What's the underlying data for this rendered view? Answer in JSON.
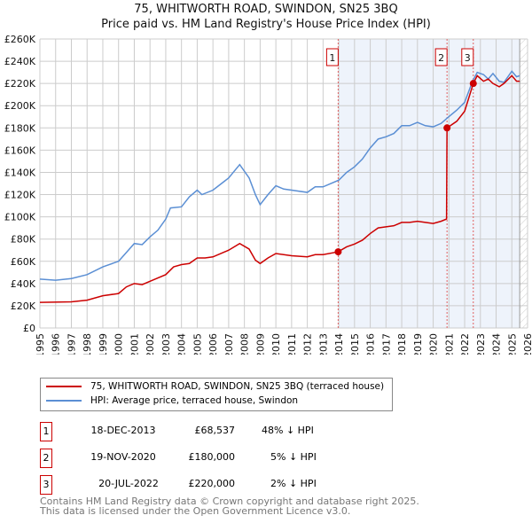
{
  "chart_data": {
    "type": "line",
    "title": "75, WHITWORTH ROAD, SWINDON, SN25 3BQ",
    "subtitle": "Price paid vs. HM Land Registry's House Price Index (HPI)",
    "xlim": [
      1995,
      2026
    ],
    "ylim": [
      0,
      260000
    ],
    "x_ticks": [
      "1995",
      "1996",
      "1997",
      "1998",
      "1999",
      "2000",
      "2001",
      "2002",
      "2003",
      "2004",
      "2005",
      "2006",
      "2007",
      "2008",
      "2009",
      "2010",
      "2011",
      "2012",
      "2013",
      "2014",
      "2015",
      "2016",
      "2017",
      "2018",
      "2019",
      "2020",
      "2021",
      "2022",
      "2023",
      "2024",
      "2025",
      "2026"
    ],
    "y_ticks": [
      "£0",
      "£20K",
      "£40K",
      "£60K",
      "£80K",
      "£100K",
      "£120K",
      "£140K",
      "£160K",
      "£180K",
      "£200K",
      "£220K",
      "£240K",
      "£260K"
    ],
    "grid": true,
    "colors": {
      "property": "#cc0000",
      "hpi": "#5b8fd4",
      "shade": "#eef3fb"
    },
    "series": [
      {
        "name": "75, WHITWORTH ROAD, SWINDON, SN25 3BQ (terraced house)",
        "key": "property",
        "x": [
          1995,
          1997,
          1998,
          1999,
          2000,
          2000.5,
          2001,
          2001.5,
          2002,
          2002.5,
          2003,
          2003.5,
          2004,
          2004.5,
          2005,
          2005.5,
          2006,
          2007,
          2007.7,
          2008.3,
          2008.7,
          2009,
          2009.5,
          2010,
          2011,
          2012,
          2012.5,
          2013,
          2013.96,
          2014.5,
          2015,
          2015.5,
          2016,
          2016.5,
          2017,
          2017.5,
          2018,
          2018.5,
          2019,
          2019.5,
          2020,
          2020.5,
          2020.85,
          2020.88,
          2021.5,
          2022,
          2022.55,
          2022.8,
          2023.2,
          2023.5,
          2023.8,
          2024.2,
          2024.5,
          2025,
          2025.3,
          2025.5
        ],
        "values": [
          23000,
          23500,
          25000,
          29000,
          31000,
          37000,
          40000,
          39000,
          42000,
          45000,
          48000,
          55000,
          57000,
          58000,
          63000,
          63000,
          64000,
          70000,
          76000,
          71000,
          61000,
          58000,
          63000,
          67000,
          65000,
          64000,
          66000,
          66000,
          68537,
          73000,
          75500,
          79000,
          85000,
          90000,
          91000,
          92000,
          95000,
          95000,
          96000,
          95000,
          94000,
          96000,
          98000,
          180000,
          186000,
          195000,
          220000,
          227000,
          222000,
          224000,
          220000,
          217000,
          220000,
          227000,
          222000,
          222000
        ]
      },
      {
        "name": "HPI: Average price, terraced house, Swindon",
        "key": "hpi",
        "x": [
          1995,
          1996,
          1997,
          1998,
          1999,
          2000,
          2000.5,
          2001,
          2001.5,
          2002,
          2002.5,
          2003,
          2003.3,
          2004,
          2004.5,
          2005,
          2005.3,
          2006,
          2007,
          2007.7,
          2008.3,
          2008.7,
          2009,
          2009.5,
          2010,
          2010.5,
          2011,
          2012,
          2012.5,
          2013,
          2014,
          2014.5,
          2015,
          2015.5,
          2016,
          2016.5,
          2017,
          2017.5,
          2018,
          2018.5,
          2019,
          2019.5,
          2020,
          2020.5,
          2020.9,
          2021.5,
          2022,
          2022.5,
          2022.8,
          2023.2,
          2023.5,
          2023.8,
          2024.2,
          2024.5,
          2025,
          2025.3,
          2025.5
        ],
        "values": [
          44000,
          43000,
          44500,
          48000,
          55000,
          60000,
          68000,
          76000,
          75000,
          82000,
          88000,
          98000,
          108000,
          109000,
          118000,
          124000,
          120000,
          124000,
          135000,
          147000,
          135000,
          120000,
          111000,
          120000,
          128000,
          125000,
          124000,
          122000,
          127000,
          127000,
          133000,
          140000,
          145000,
          152000,
          162000,
          170000,
          172000,
          175000,
          182000,
          182000,
          185000,
          182000,
          181000,
          184000,
          189000,
          196000,
          203000,
          222000,
          230000,
          228000,
          224000,
          229000,
          222000,
          221000,
          231000,
          226000,
          227000
        ]
      }
    ],
    "sales": [
      {
        "num": "1",
        "date": "18-DEC-2013",
        "x": 2013.96,
        "price": "£68,537",
        "value": 68537,
        "hpi": "48% ↓ HPI"
      },
      {
        "num": "2",
        "date": "19-NOV-2020",
        "x": 2020.88,
        "price": "£180,000",
        "value": 180000,
        "hpi": "5% ↓ HPI"
      },
      {
        "num": "3",
        "date": "20-JUL-2022",
        "x": 2022.55,
        "price": "£220,000",
        "value": 220000,
        "hpi": "2% ↓ HPI"
      }
    ],
    "forecast_start": 2025.5
  },
  "footer": {
    "line1": "Contains HM Land Registry data © Crown copyright and database right 2025.",
    "line2": "This data is licensed under the Open Government Licence v3.0."
  }
}
